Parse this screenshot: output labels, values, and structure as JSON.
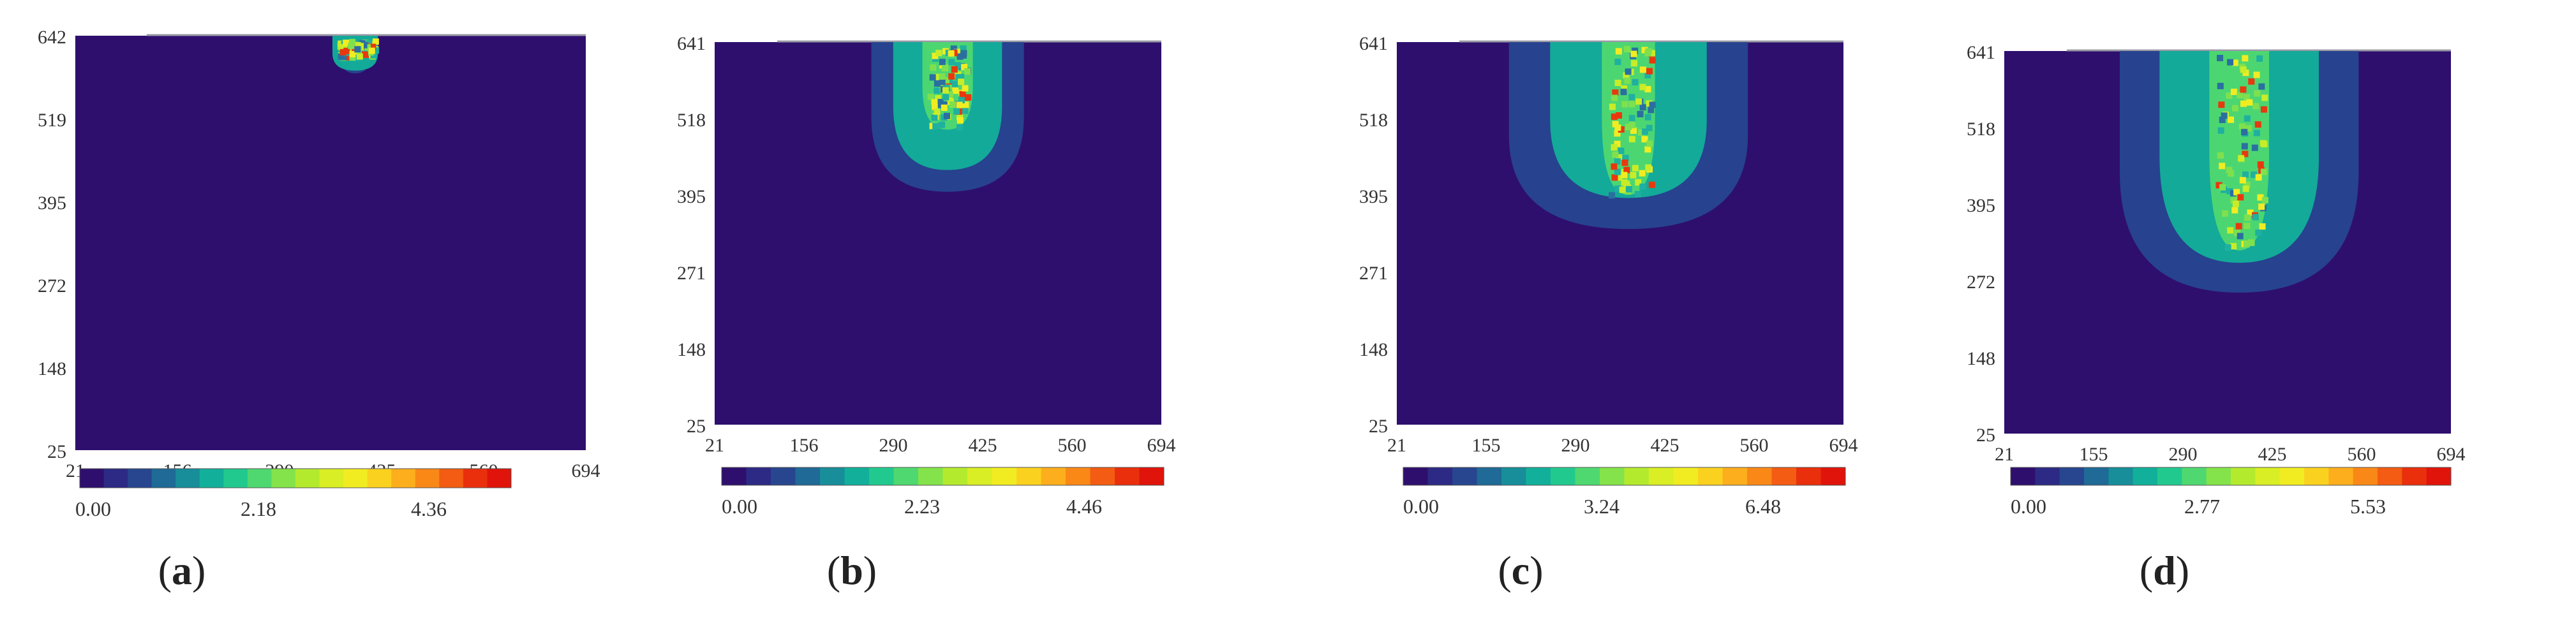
{
  "chart_data": [
    {
      "type": "heatmap",
      "panel_label": "a",
      "yticks": [
        "642",
        "519",
        "395",
        "272",
        "148",
        "25"
      ],
      "xticks": [
        "21",
        "156",
        "290",
        "425",
        "560",
        "694"
      ],
      "colorbar_ticks": [
        "0.00",
        "2.18",
        "4.36"
      ],
      "value_range": [
        0.0,
        4.36
      ],
      "xlim": [
        21,
        694
      ],
      "ylim": [
        25,
        642
      ],
      "hotspot": {
        "x_center": 390,
        "x_halfwidth": [
          20,
          30
        ],
        "y_top": 642,
        "y_bottom": [
          586,
          590,
          610
        ],
        "peak": 4.36
      }
    },
    {
      "type": "heatmap",
      "panel_label": "b",
      "yticks": [
        "641",
        "518",
        "395",
        "271",
        "148",
        "25"
      ],
      "xticks": [
        "21",
        "156",
        "290",
        "425",
        "560",
        "694"
      ],
      "colorbar_ticks": [
        "0.00",
        "2.23",
        "4.46"
      ],
      "value_range": [
        0.0,
        4.46
      ],
      "xlim": [
        21,
        694
      ],
      "ylim": [
        25,
        641
      ],
      "hotspot": {
        "x_center": 372,
        "x_halfwidth": [
          115,
          82,
          38
        ],
        "y_top": 641,
        "y_bottom": [
          400,
          435,
          500
        ],
        "peak": 4.46
      }
    },
    {
      "type": "heatmap",
      "panel_label": "c",
      "yticks": [
        "641",
        "518",
        "395",
        "271",
        "148",
        "25"
      ],
      "xticks": [
        "21",
        "155",
        "290",
        "425",
        "560",
        "694"
      ],
      "colorbar_ticks": [
        "0.00",
        "3.24",
        "6.48"
      ],
      "value_range": [
        0.0,
        6.48
      ],
      "xlim": [
        21,
        694
      ],
      "ylim": [
        25,
        641
      ],
      "hotspot": {
        "x_center": 370,
        "x_halfwidth": [
          180,
          118,
          40
        ],
        "y_top": 641,
        "y_bottom": [
          340,
          390,
          395
        ],
        "peak": 6.48
      }
    },
    {
      "type": "heatmap",
      "panel_label": "d",
      "yticks": [
        "641",
        "518",
        "395",
        "272",
        "148",
        "25"
      ],
      "xticks": [
        "21",
        "155",
        "290",
        "425",
        "560",
        "694"
      ],
      "colorbar_ticks": [
        "0.00",
        "2.77",
        "5.53"
      ],
      "value_range": [
        0.0,
        5.53
      ],
      "xlim": [
        21,
        694
      ],
      "ylim": [
        25,
        641
      ],
      "hotspot": {
        "x_center": 375,
        "x_halfwidth": [
          180,
          120,
          45
        ],
        "y_top": 641,
        "y_bottom": [
          252,
          300,
          320
        ],
        "peak": 5.53
      }
    }
  ],
  "colors": {
    "background_field": "#2e0f6e",
    "colormap": [
      "#2e0f6e",
      "#2c2a85",
      "#27468f",
      "#1f6a96",
      "#178e9a",
      "#12b09a",
      "#22c98e",
      "#4fd870",
      "#84e34a",
      "#b4ea2e",
      "#d9ee24",
      "#f1ec22",
      "#fbd11f",
      "#fcae1c",
      "#f98817",
      "#f35c12",
      "#ea2f0d",
      "#e0140a"
    ]
  }
}
